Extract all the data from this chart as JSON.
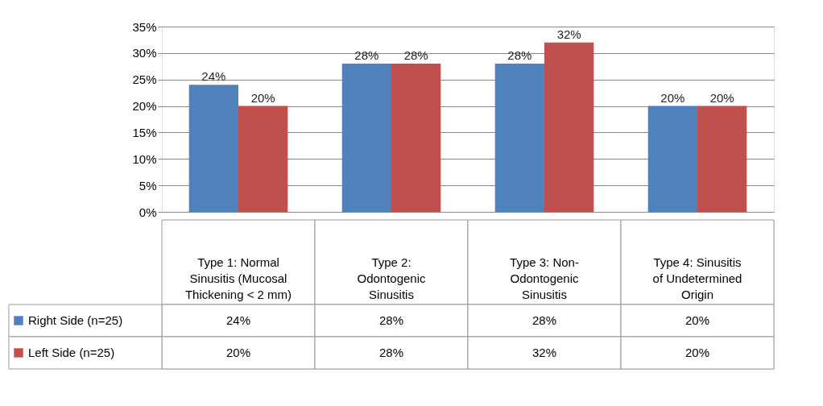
{
  "chart_data": {
    "type": "bar",
    "categories": [
      "Type 1: Normal Sinusitis (Mucosal Thickening < 2 mm)",
      "Type 2: Odontogenic Sinusitis",
      "Type 3: Non-Odontogenic Sinusitis",
      "Type 4: Sinusitis of Undetermined Origin"
    ],
    "series": [
      {
        "name": "Right Side (n=25)",
        "color": "#4f81bd",
        "values": [
          24,
          28,
          28,
          20
        ],
        "value_labels": [
          "24%",
          "28%",
          "28%",
          "20%"
        ]
      },
      {
        "name": "Left Side (n=25)",
        "color": "#c0504d",
        "values": [
          20,
          28,
          32,
          20
        ],
        "value_labels": [
          "20%",
          "28%",
          "32%",
          "20%"
        ]
      }
    ],
    "ylim": [
      0,
      35
    ],
    "yticks": [
      {
        "value": 0,
        "label": "0%"
      },
      {
        "value": 5,
        "label": "5%"
      },
      {
        "value": 10,
        "label": "10%"
      },
      {
        "value": 15,
        "label": "15%"
      },
      {
        "value": 20,
        "label": "20%"
      },
      {
        "value": 25,
        "label": "25%"
      },
      {
        "value": 30,
        "label": "30%"
      },
      {
        "value": 35,
        "label": "35%"
      }
    ],
    "grid": "y",
    "legend": "bottom left"
  }
}
